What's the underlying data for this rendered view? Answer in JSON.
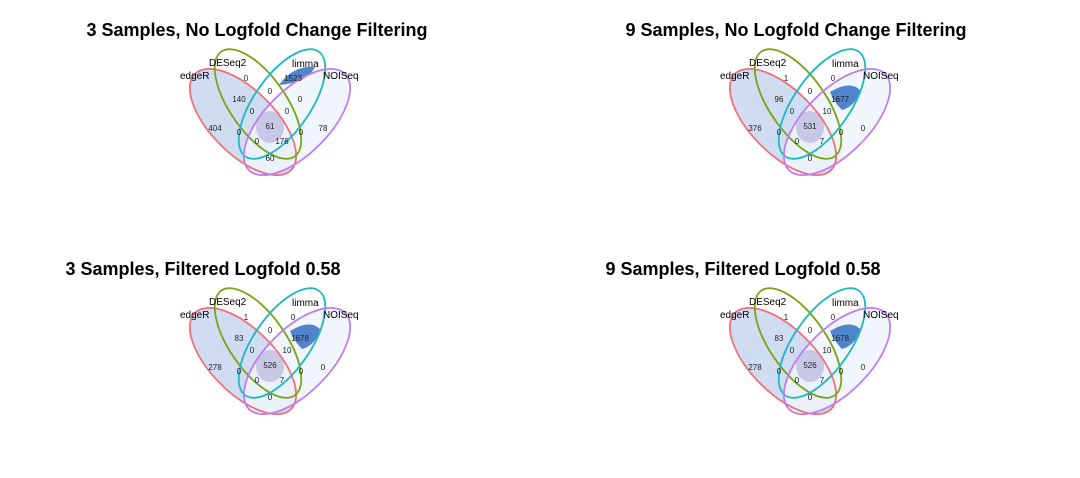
{
  "sets": {
    "edger": {
      "name": "edgeR",
      "color": "#f0707a"
    },
    "deseq2": {
      "name": "DESeq2",
      "color": "#7aa314"
    },
    "limma": {
      "name": "limma",
      "color": "#1cb8c4"
    },
    "noiseq": {
      "name": "NOISeq",
      "color": "#c27cf0"
    }
  },
  "panels": [
    {
      "title": "3 Samples, No Logfold Change Filtering",
      "counts": {
        "edger_only": "404",
        "deseq2_only": "0",
        "limma_only": "1523",
        "noiseq_only": "78",
        "edger_deseq2": "140",
        "deseq2_limma": "0",
        "limma_noiseq": "0",
        "edger_noiseq": "60",
        "edger_limma": "0",
        "deseq2_noiseq": "0",
        "edger_deseq2_limma": "0",
        "deseq2_limma_noiseq": "0",
        "edger_deseq2_noiseq": "0",
        "edger_limma_noiseq": "176",
        "all": "61"
      }
    },
    {
      "title": "9 Samples, No Logfold Change Filtering",
      "counts": {
        "edger_only": "376",
        "deseq2_only": "1",
        "limma_only": "0",
        "noiseq_only": "0",
        "edger_deseq2": "96",
        "deseq2_limma": "0",
        "limma_noiseq": "1677",
        "edger_noiseq": "0",
        "edger_limma": "0",
        "deseq2_noiseq": "0",
        "edger_deseq2_limma": "0",
        "deseq2_limma_noiseq": "10",
        "edger_deseq2_noiseq": "0",
        "edger_limma_noiseq": "7",
        "all": "531"
      }
    },
    {
      "title": "3 Samples, Filtered Logfold 0.58",
      "counts": {
        "edger_only": "278",
        "deseq2_only": "1",
        "limma_only": "0",
        "noiseq_only": "0",
        "edger_deseq2": "83",
        "deseq2_limma": "0",
        "limma_noiseq": "1678",
        "edger_noiseq": "0",
        "edger_limma": "0",
        "deseq2_noiseq": "0",
        "edger_deseq2_limma": "0",
        "deseq2_limma_noiseq": "10",
        "edger_deseq2_noiseq": "0",
        "edger_limma_noiseq": "7",
        "all": "526"
      }
    },
    {
      "title": "9 Samples, Filtered Logfold 0.58",
      "counts": {
        "edger_only": "278",
        "deseq2_only": "1",
        "limma_only": "0",
        "noiseq_only": "0",
        "edger_deseq2": "83",
        "deseq2_limma": "0",
        "limma_noiseq": "1678",
        "edger_noiseq": "0",
        "edger_limma": "0",
        "deseq2_noiseq": "0",
        "edger_deseq2_limma": "0",
        "deseq2_limma_noiseq": "10",
        "edger_deseq2_noiseq": "0",
        "edger_limma_noiseq": "7",
        "all": "526"
      }
    }
  ]
}
